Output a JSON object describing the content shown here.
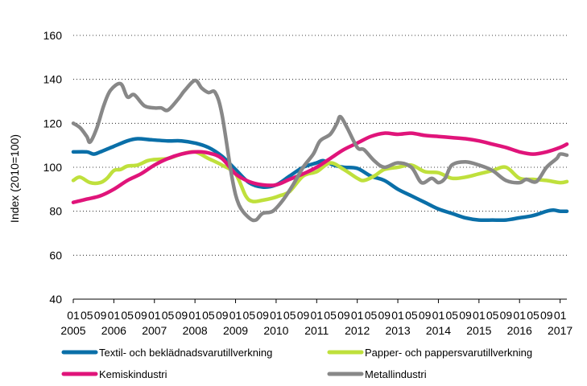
{
  "chart_data": {
    "type": "line",
    "ylabel": "Index (2010=100)",
    "ylim": [
      40,
      160
    ],
    "yticks": [
      40,
      60,
      80,
      100,
      120,
      140,
      160
    ],
    "grid": "horizontal dashed",
    "legend_position": "bottom",
    "x_month_label_pattern": [
      "01",
      "05",
      "09"
    ],
    "years": [
      "2005",
      "2006",
      "2007",
      "2008",
      "2009",
      "2010",
      "2011",
      "2012",
      "2013",
      "2014",
      "2015",
      "2016",
      "2017"
    ],
    "x_start": "2005-01",
    "x_end": "2017-03",
    "series": [
      {
        "name": "Textil- och beklädnadsvarutillverkning",
        "color": "#0a6fa8",
        "points": [
          [
            "2005-01",
            107
          ],
          [
            "2005-05",
            107
          ],
          [
            "2005-07",
            106
          ],
          [
            "2005-09",
            107
          ],
          [
            "2006-01",
            109.5
          ],
          [
            "2006-05",
            112
          ],
          [
            "2006-08",
            113
          ],
          [
            "2006-12",
            112.5
          ],
          [
            "2007-05",
            112
          ],
          [
            "2007-09",
            112
          ],
          [
            "2008-01",
            111
          ],
          [
            "2008-05",
            109
          ],
          [
            "2008-09",
            105
          ],
          [
            "2009-01",
            99
          ],
          [
            "2009-05",
            93
          ],
          [
            "2009-09",
            91
          ],
          [
            "2010-01",
            92
          ],
          [
            "2010-05",
            96
          ],
          [
            "2010-09",
            100
          ],
          [
            "2011-01",
            102
          ],
          [
            "2011-03",
            103
          ],
          [
            "2011-06",
            101
          ],
          [
            "2011-09",
            100
          ],
          [
            "2012-01",
            99.5
          ],
          [
            "2012-05",
            96
          ],
          [
            "2012-09",
            94
          ],
          [
            "2013-01",
            90
          ],
          [
            "2013-05",
            87
          ],
          [
            "2013-09",
            84
          ],
          [
            "2014-01",
            81
          ],
          [
            "2014-05",
            79
          ],
          [
            "2014-09",
            77
          ],
          [
            "2015-01",
            76
          ],
          [
            "2015-05",
            76
          ],
          [
            "2015-09",
            76
          ],
          [
            "2016-01",
            77
          ],
          [
            "2016-05",
            78
          ],
          [
            "2016-09",
            80
          ],
          [
            "2016-11",
            80.5
          ],
          [
            "2017-01",
            80
          ],
          [
            "2017-03",
            80
          ]
        ]
      },
      {
        "name": "Papper- och pappersvarutillverkning",
        "color": "#bfe03c",
        "points": [
          [
            "2005-01",
            94
          ],
          [
            "2005-03",
            95.5
          ],
          [
            "2005-06",
            93
          ],
          [
            "2005-09",
            93
          ],
          [
            "2005-11",
            95
          ],
          [
            "2006-01",
            98.5
          ],
          [
            "2006-03",
            99
          ],
          [
            "2006-05",
            100.5
          ],
          [
            "2006-08",
            101
          ],
          [
            "2006-11",
            103
          ],
          [
            "2007-01",
            103.5
          ],
          [
            "2007-05",
            104
          ],
          [
            "2007-09",
            106
          ],
          [
            "2008-01",
            107
          ],
          [
            "2008-05",
            104
          ],
          [
            "2008-09",
            101
          ],
          [
            "2009-01",
            97
          ],
          [
            "2009-04",
            87
          ],
          [
            "2009-06",
            84.5
          ],
          [
            "2009-09",
            85
          ],
          [
            "2009-12",
            86
          ],
          [
            "2010-02",
            87
          ],
          [
            "2010-05",
            89
          ],
          [
            "2010-09",
            96
          ],
          [
            "2011-01",
            98
          ],
          [
            "2011-05",
            102
          ],
          [
            "2011-09",
            99
          ],
          [
            "2012-01",
            95
          ],
          [
            "2012-03",
            94
          ],
          [
            "2012-06",
            96
          ],
          [
            "2012-09",
            99
          ],
          [
            "2013-01",
            100
          ],
          [
            "2013-05",
            101
          ],
          [
            "2013-09",
            98
          ],
          [
            "2014-01",
            97.5
          ],
          [
            "2014-05",
            95
          ],
          [
            "2014-09",
            95.5
          ],
          [
            "2015-01",
            97
          ],
          [
            "2015-05",
            98.5
          ],
          [
            "2015-09",
            100
          ],
          [
            "2016-01",
            95
          ],
          [
            "2016-05",
            94.5
          ],
          [
            "2016-09",
            94
          ],
          [
            "2017-01",
            93
          ],
          [
            "2017-03",
            93.5
          ]
        ]
      },
      {
        "name": "Kemiskindustri",
        "color": "#e0147a",
        "points": [
          [
            "2005-01",
            84
          ],
          [
            "2005-05",
            85.5
          ],
          [
            "2005-09",
            87
          ],
          [
            "2006-01",
            90
          ],
          [
            "2006-05",
            94
          ],
          [
            "2006-09",
            97
          ],
          [
            "2007-01",
            101
          ],
          [
            "2007-05",
            104
          ],
          [
            "2007-09",
            106
          ],
          [
            "2008-01",
            107
          ],
          [
            "2008-05",
            106.5
          ],
          [
            "2008-09",
            104
          ],
          [
            "2009-01",
            97
          ],
          [
            "2009-05",
            93.5
          ],
          [
            "2009-09",
            92
          ],
          [
            "2010-01",
            92
          ],
          [
            "2010-05",
            94.5
          ],
          [
            "2010-09",
            97
          ],
          [
            "2011-01",
            100
          ],
          [
            "2011-05",
            104
          ],
          [
            "2011-09",
            108
          ],
          [
            "2012-01",
            111
          ],
          [
            "2012-05",
            114
          ],
          [
            "2012-09",
            115.5
          ],
          [
            "2013-01",
            115
          ],
          [
            "2013-05",
            115.5
          ],
          [
            "2013-09",
            114.5
          ],
          [
            "2014-01",
            114
          ],
          [
            "2014-05",
            113.5
          ],
          [
            "2014-09",
            113
          ],
          [
            "2015-01",
            112
          ],
          [
            "2015-05",
            110.5
          ],
          [
            "2015-09",
            109
          ],
          [
            "2016-01",
            107
          ],
          [
            "2016-05",
            106
          ],
          [
            "2016-09",
            107
          ],
          [
            "2017-01",
            109
          ],
          [
            "2017-03",
            110.5
          ]
        ]
      },
      {
        "name": "Metallindustri",
        "color": "#888888",
        "points": [
          [
            "2005-01",
            120
          ],
          [
            "2005-03",
            118
          ],
          [
            "2005-05",
            114
          ],
          [
            "2005-06",
            111.5
          ],
          [
            "2005-08",
            118
          ],
          [
            "2005-10",
            128
          ],
          [
            "2005-12",
            135
          ],
          [
            "2006-03",
            138
          ],
          [
            "2006-05",
            132
          ],
          [
            "2006-07",
            133
          ],
          [
            "2006-10",
            128
          ],
          [
            "2007-01",
            127
          ],
          [
            "2007-03",
            127
          ],
          [
            "2007-05",
            126
          ],
          [
            "2007-08",
            131
          ],
          [
            "2007-10",
            135
          ],
          [
            "2008-01",
            139.5
          ],
          [
            "2008-03",
            136
          ],
          [
            "2008-05",
            134
          ],
          [
            "2008-07",
            134
          ],
          [
            "2008-09",
            124
          ],
          [
            "2008-12",
            95
          ],
          [
            "2009-02",
            83
          ],
          [
            "2009-05",
            77
          ],
          [
            "2009-07",
            76
          ],
          [
            "2009-09",
            79
          ],
          [
            "2009-12",
            80
          ],
          [
            "2010-03",
            85
          ],
          [
            "2010-06",
            92
          ],
          [
            "2010-09",
            100
          ],
          [
            "2010-12",
            106
          ],
          [
            "2011-02",
            112
          ],
          [
            "2011-05",
            115
          ],
          [
            "2011-07",
            120
          ],
          [
            "2011-08",
            123
          ],
          [
            "2011-10",
            118
          ],
          [
            "2012-01",
            109
          ],
          [
            "2012-03",
            108
          ],
          [
            "2012-06",
            103
          ],
          [
            "2012-09",
            100
          ],
          [
            "2013-01",
            102
          ],
          [
            "2013-05",
            100
          ],
          [
            "2013-08",
            93
          ],
          [
            "2013-11",
            95
          ],
          [
            "2014-01",
            93
          ],
          [
            "2014-03",
            95
          ],
          [
            "2014-05",
            101
          ],
          [
            "2014-09",
            102.5
          ],
          [
            "2015-01",
            101
          ],
          [
            "2015-05",
            98.5
          ],
          [
            "2015-09",
            94
          ],
          [
            "2016-01",
            93
          ],
          [
            "2016-03",
            94.5
          ],
          [
            "2016-06",
            93.5
          ],
          [
            "2016-09",
            100
          ],
          [
            "2016-12",
            104
          ],
          [
            "2017-01",
            106
          ],
          [
            "2017-03",
            105.5
          ]
        ]
      }
    ]
  }
}
